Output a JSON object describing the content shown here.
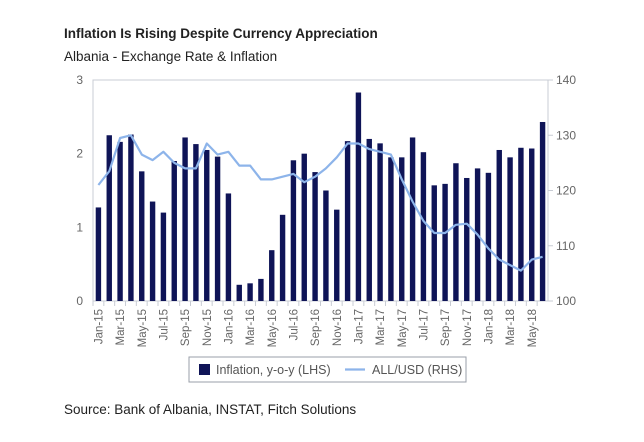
{
  "title": "Inflation Is Rising Despite Currency Appreciation",
  "subtitle": "Albania - Exchange Rate & Inflation",
  "source": "Source: Bank of Albania, INSTAT, Fitch Solutions",
  "chart_data": {
    "type": "bar",
    "categories": [
      "Jan-15",
      "Feb-15",
      "Mar-15",
      "Apr-15",
      "May-15",
      "Jun-15",
      "Jul-15",
      "Aug-15",
      "Sep-15",
      "Oct-15",
      "Nov-15",
      "Dec-15",
      "Jan-16",
      "Feb-16",
      "Mar-16",
      "Apr-16",
      "May-16",
      "Jun-16",
      "Jul-16",
      "Aug-16",
      "Sep-16",
      "Oct-16",
      "Nov-16",
      "Dec-16",
      "Jan-17",
      "Feb-17",
      "Mar-17",
      "Apr-17",
      "May-17",
      "Jun-17",
      "Jul-17",
      "Aug-17",
      "Sep-17",
      "Oct-17",
      "Nov-17",
      "Dec-17",
      "Jan-18",
      "Feb-18",
      "Mar-18",
      "Apr-18",
      "May-18",
      "Jun-18"
    ],
    "tick_labels": [
      "Jan-15",
      "Mar-15",
      "May-15",
      "Jul-15",
      "Sep-15",
      "Nov-15",
      "Jan-16",
      "Mar-16",
      "May-16",
      "Jul-16",
      "Sep-16",
      "Nov-16",
      "Jan-17",
      "Mar-17",
      "May-17",
      "Jul-17",
      "Sep-17",
      "Nov-17",
      "Jan-18",
      "Mar-18",
      "May-18"
    ],
    "series": [
      {
        "name": "Inflation, y-o-y (LHS)",
        "type": "bar",
        "axis": "left",
        "color": "#0f1457",
        "values": [
          1.27,
          2.25,
          2.16,
          2.26,
          1.76,
          1.35,
          1.2,
          1.9,
          2.22,
          2.13,
          2.05,
          1.96,
          1.46,
          0.22,
          0.24,
          0.3,
          0.69,
          1.17,
          1.91,
          2.0,
          1.75,
          1.5,
          1.24,
          2.17,
          2.83,
          2.2,
          2.14,
          1.95,
          1.95,
          2.22,
          2.02,
          1.57,
          1.59,
          1.87,
          1.67,
          1.8,
          1.74,
          2.05,
          1.95,
          2.08,
          2.07,
          2.43
        ]
      },
      {
        "name": "ALL/USD (RHS)",
        "type": "line",
        "axis": "right",
        "color": "#8db4ea",
        "values": [
          121,
          123.5,
          129.5,
          130,
          126.5,
          125.5,
          127,
          125,
          124,
          124,
          128.5,
          126.5,
          127,
          124.5,
          124.5,
          122,
          122,
          122.5,
          123,
          121.5,
          122.5,
          124,
          126,
          128.5,
          128.5,
          127.5,
          127,
          126.5,
          122,
          118,
          114.5,
          112.3,
          112.3,
          113.8,
          114,
          112,
          109.5,
          107.5,
          106.5,
          105.5,
          107.5,
          108
        ]
      }
    ],
    "left_axis": {
      "ylim": [
        0,
        3
      ],
      "ticks": [
        "0",
        "1",
        "2",
        "3"
      ]
    },
    "right_axis": {
      "ylim": [
        100,
        140
      ],
      "ticks": [
        "100",
        "110",
        "120",
        "130",
        "140"
      ]
    },
    "legend": "bottom-center"
  }
}
